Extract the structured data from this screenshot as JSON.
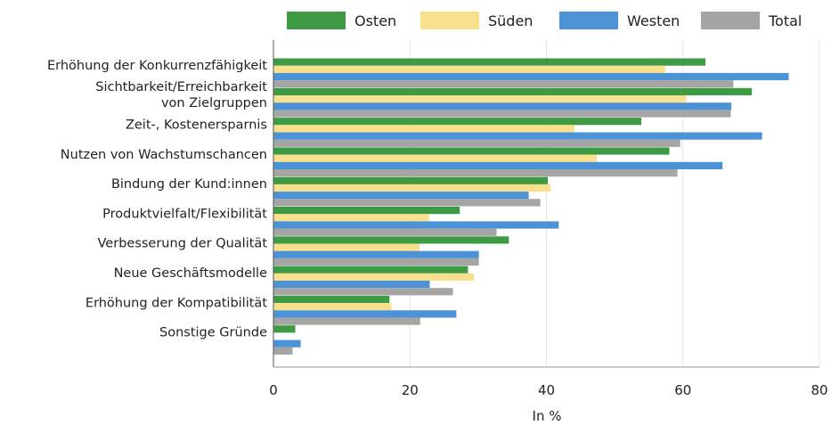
{
  "chart_data": {
    "type": "bar",
    "orientation": "horizontal",
    "xlabel": "In %",
    "xlim": [
      0,
      80
    ],
    "xticks": [
      0,
      20,
      40,
      60,
      80
    ],
    "grid": "vertical",
    "legend_position": "top",
    "categories": [
      [
        "Erhöhung der Konkurrenzfähigkeit"
      ],
      [
        "Sichtbarkeit/Erreichbarkeit",
        "von Zielgruppen"
      ],
      [
        "Zeit-, Kostenersparnis"
      ],
      [
        "Nutzen von Wachstumschancen"
      ],
      [
        "Bindung der Kund:innen"
      ],
      [
        "Produktvielfalt/Flexibilität"
      ],
      [
        "Verbesserung der Qualität"
      ],
      [
        "Neue Geschäftsmodelle"
      ],
      [
        "Erhöhung der Kompatibilität"
      ],
      [
        "Sonstige Gründe"
      ]
    ],
    "series": [
      {
        "name": "Osten",
        "color": "#3f9a44",
        "values": [
          63.3,
          70.1,
          53.9,
          58.0,
          40.2,
          27.3,
          34.5,
          28.5,
          17.0,
          3.2
        ]
      },
      {
        "name": "Süden",
        "color": "#f8e08c",
        "values": [
          57.4,
          60.5,
          44.1,
          47.4,
          40.6,
          22.8,
          21.4,
          29.4,
          17.3,
          0
        ]
      },
      {
        "name": "Westen",
        "color": "#4b93d6",
        "values": [
          75.5,
          67.1,
          71.6,
          65.8,
          37.4,
          41.8,
          30.1,
          22.9,
          26.8,
          4.0
        ]
      },
      {
        "name": "Total",
        "color": "#a5a5a5",
        "values": [
          67.4,
          67.0,
          59.6,
          59.2,
          39.1,
          32.7,
          30.1,
          26.3,
          21.5,
          2.8
        ]
      }
    ]
  }
}
